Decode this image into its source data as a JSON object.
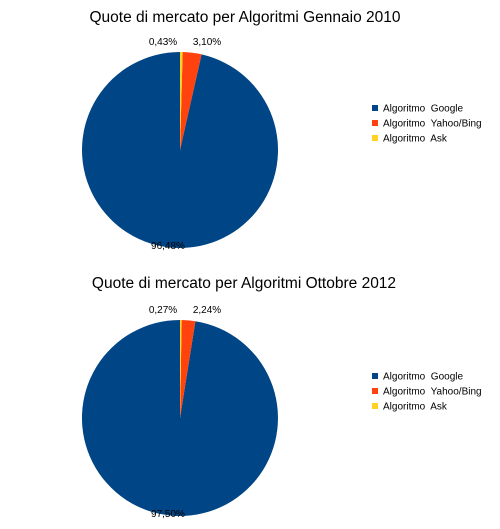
{
  "chart_data": [
    {
      "type": "pie",
      "title": "Quote di mercato per Algoritmi Gennaio 2010",
      "categories": [
        "Algoritmo  Google",
        "Algoritmo  Yahoo/Bing",
        "Algoritmo  Ask"
      ],
      "values": [
        96.48,
        3.1,
        0.43
      ],
      "labels": [
        "96,48%",
        "3,10%",
        "0,43%"
      ],
      "colors": [
        "#004586",
        "#ff420e",
        "#ffd320"
      ],
      "legend_position": "right"
    },
    {
      "type": "pie",
      "title": "Quote di mercato per Algoritmi Ottobre 2012",
      "categories": [
        "Algoritmo  Google",
        "Algoritmo  Yahoo/Bing",
        "Algoritmo  Ask"
      ],
      "values": [
        97.5,
        2.24,
        0.27
      ],
      "labels": [
        "97,50%",
        "2,24%",
        "0,27%"
      ],
      "colors": [
        "#004586",
        "#ff420e",
        "#ffd320"
      ],
      "legend_position": "right"
    }
  ]
}
